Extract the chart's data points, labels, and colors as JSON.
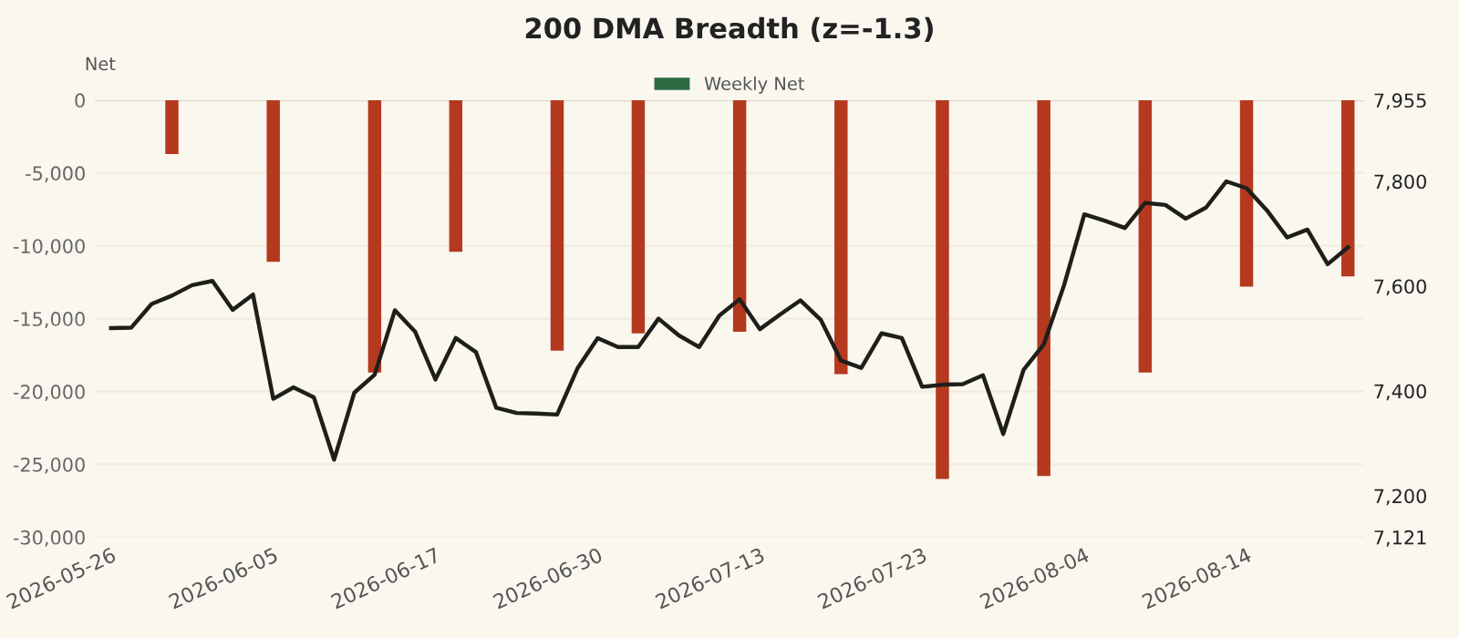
{
  "chart_data": {
    "type": "bar",
    "title": "200 DMA Breadth (z=-1.3)",
    "ylabel": "Net",
    "categories": [
      "2026-05-26",
      null,
      null,
      null,
      null,
      null,
      null,
      null,
      "2026-06-05",
      null,
      null,
      null,
      null,
      null,
      null,
      null,
      "2026-06-17",
      null,
      null,
      null,
      null,
      null,
      null,
      null,
      "2026-06-30",
      null,
      null,
      null,
      null,
      null,
      null,
      null,
      "2026-07-13",
      null,
      null,
      null,
      null,
      null,
      null,
      null,
      "2026-07-23",
      null,
      null,
      null,
      null,
      null,
      null,
      null,
      "2026-08-04",
      null,
      null,
      null,
      null,
      null,
      null,
      null,
      "2026-08-14",
      null,
      null,
      null,
      null,
      null
    ],
    "series": [
      {
        "name": "Weekly Net",
        "color": "#2e6b45",
        "colors": [
          null,
          null,
          null,
          "#b5391f",
          null,
          null,
          null,
          null,
          "#b5391f",
          null,
          null,
          null,
          null,
          "#b5391f",
          null,
          null,
          null,
          "#b5391f",
          null,
          null,
          null,
          null,
          "#b5391f",
          null,
          null,
          null,
          "#b5391f",
          null,
          null,
          null,
          null,
          "#b5391f",
          null,
          null,
          null,
          null,
          "#b5391f",
          null,
          null,
          null,
          null,
          "#b5391f",
          null,
          null,
          null,
          null,
          "#b5391f",
          null,
          null,
          null,
          null,
          "#b5391f",
          null,
          null,
          null,
          null,
          "#b5391f",
          null,
          null,
          null,
          null,
          "#b5391f"
        ],
        "values": [
          null,
          null,
          null,
          -3700,
          null,
          null,
          null,
          null,
          -11100,
          null,
          null,
          null,
          null,
          -18700,
          null,
          null,
          null,
          -10400,
          null,
          null,
          null,
          null,
          -17200,
          null,
          null,
          null,
          -16000,
          null,
          null,
          null,
          null,
          -15900,
          null,
          null,
          null,
          null,
          -18800,
          null,
          null,
          null,
          null,
          -26000,
          null,
          null,
          null,
          null,
          -25800,
          null,
          null,
          null,
          null,
          -18700,
          null,
          null,
          null,
          null,
          -12800,
          null,
          null,
          null,
          null,
          -12100
        ]
      },
      {
        "type": "line",
        "axis": "y2",
        "color": "#1f1f1a",
        "values": [
          7520,
          7521,
          7566,
          7582,
          7602,
          7610,
          7555,
          7584,
          7385,
          7407,
          7388,
          7269,
          7397,
          7431,
          7554,
          7513,
          7422,
          7501,
          7474,
          7368,
          7358,
          7357,
          7355,
          7443,
          7501,
          7484,
          7484,
          7538,
          7506,
          7484,
          7544,
          7575,
          7518,
          7546,
          7573,
          7536,
          7458,
          7444,
          7510,
          7501,
          7408,
          7412,
          7413,
          7430,
          7318,
          7440,
          7489,
          7602,
          7737,
          7725,
          7711,
          7759,
          7755,
          7729,
          7750,
          7800,
          7787,
          7745,
          7693,
          7708,
          7642,
          7674
        ]
      }
    ],
    "ylim": [
      -30000,
      0
    ],
    "yticks": [
      {
        "value": -30000,
        "label": "-30,000"
      },
      {
        "value": -25000,
        "label": "-25,000"
      },
      {
        "value": -20000,
        "label": "-20,000"
      },
      {
        "value": -15000,
        "label": "-15,000"
      },
      {
        "value": -10000,
        "label": "-10,000"
      },
      {
        "value": -5000,
        "label": "-5,000"
      },
      0
    ],
    "y2lim": [
      7121,
      7955
    ],
    "y2ticks": [
      {
        "value": 7121,
        "label": "7,121"
      },
      {
        "value": 7200,
        "label": "7,200"
      },
      {
        "value": 7400,
        "label": "7,400"
      },
      {
        "value": 7600,
        "label": "7,600"
      },
      {
        "value": 7800,
        "label": "7,800"
      },
      {
        "value": 7955,
        "label": "7,955"
      }
    ],
    "grid": "y",
    "legend": "top"
  }
}
